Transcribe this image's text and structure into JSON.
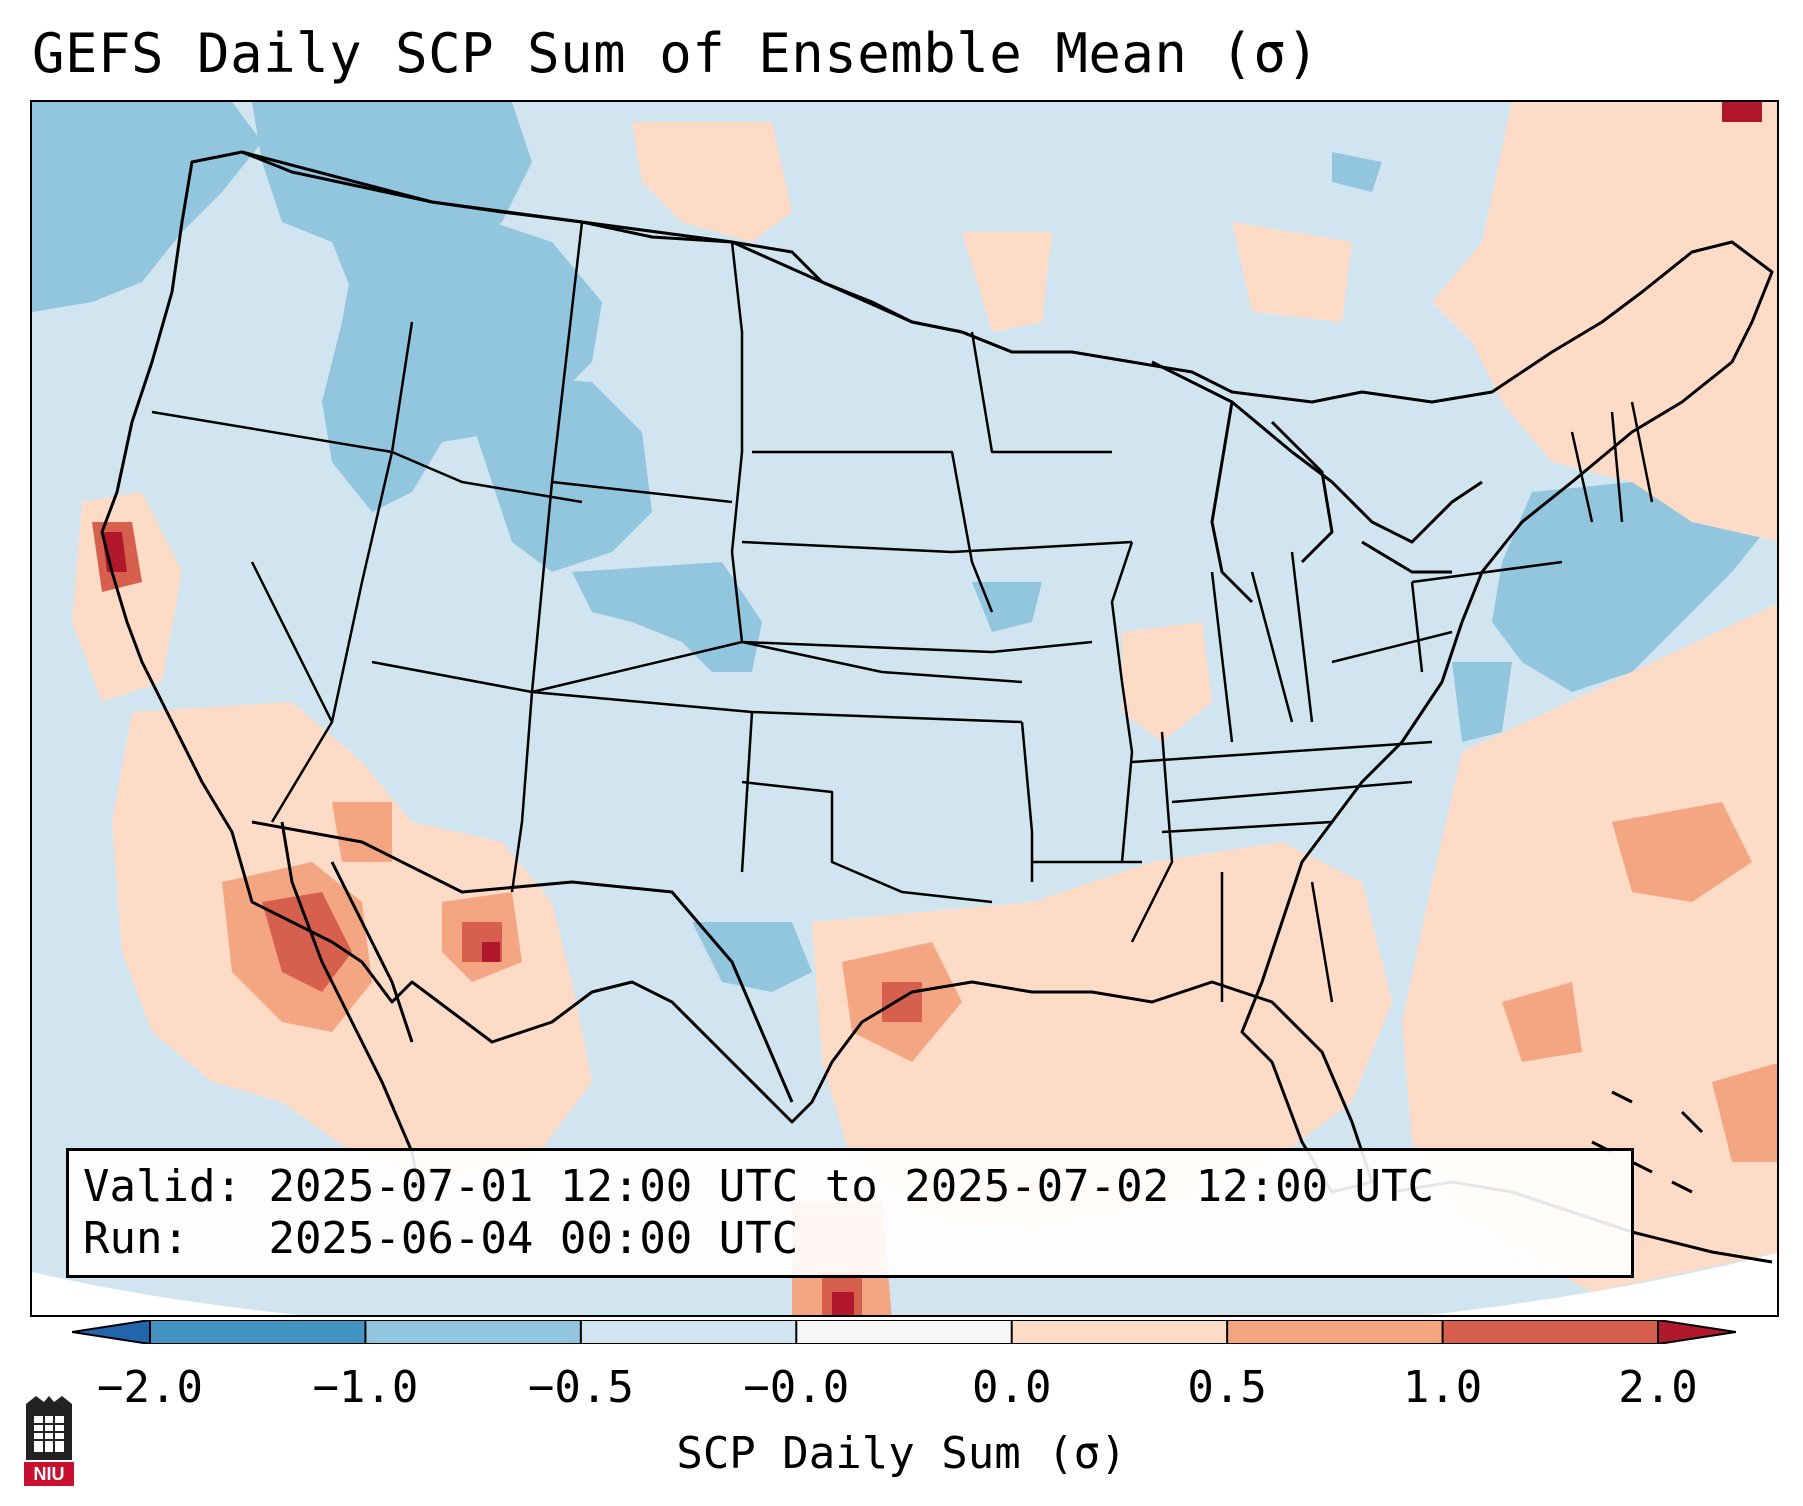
{
  "title": "GEFS Daily SCP Sum of Ensemble Mean (σ)",
  "info": {
    "valid_label": "Valid:",
    "valid_value": "2025-07-01 12:00 UTC to 2025-07-02 12:00 UTC",
    "run_label": "Run:",
    "run_value": "2025-06-04 00:00 UTC"
  },
  "colorbar": {
    "label": "SCP Daily Sum (σ)",
    "ticks": [
      "−2.0",
      "−1.0",
      "−0.5",
      "−0.0",
      "0.0",
      "0.5",
      "1.0",
      "2.0"
    ],
    "segment_colors": [
      "#4393c3",
      "#92c5de",
      "#d1e5f0",
      "#f7f7f7",
      "#fddbc7",
      "#f4a582",
      "#d6604d"
    ],
    "under_color": "#2166ac",
    "over_color": "#b2182b"
  },
  "logo": {
    "text": "NIU"
  },
  "map_colors": {
    "background": "#d1e5f0",
    "neg_mid": "#92c5de",
    "pos_light": "#fddbc7",
    "pos_mid": "#f4a582",
    "pos_strong": "#d6604d",
    "pos_max": "#b2182b",
    "boundary": "#000000"
  }
}
